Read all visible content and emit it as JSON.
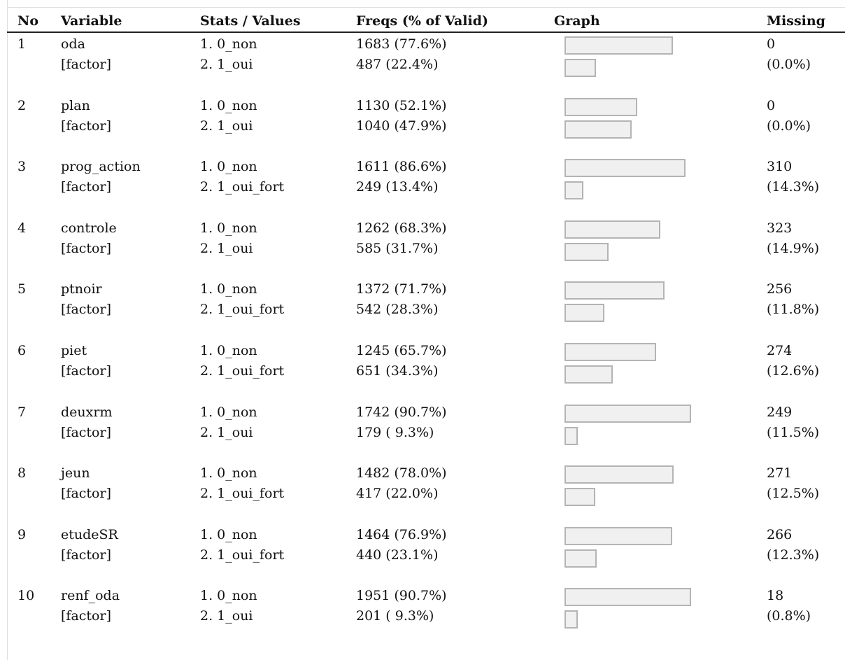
{
  "headers": {
    "no": "No",
    "variable": "Variable",
    "stats": "Stats / Values",
    "freqs": "Freqs (% of Valid)",
    "graph": "Graph",
    "missing": "Missing"
  },
  "rows": [
    {
      "no": "1",
      "name": "oda",
      "type": "[factor]",
      "values": [
        "1. 0_non",
        "2. 1_oui"
      ],
      "freqs": [
        "1683 (77.6%)",
        "487 (22.4%)"
      ],
      "pcts": [
        77.6,
        22.4
      ],
      "missing_count": "0",
      "missing_pct": "(0.0%)"
    },
    {
      "no": "2",
      "name": "plan",
      "type": "[factor]",
      "values": [
        "1. 0_non",
        "2. 1_oui"
      ],
      "freqs": [
        "1130 (52.1%)",
        "1040 (47.9%)"
      ],
      "pcts": [
        52.1,
        47.9
      ],
      "missing_count": "0",
      "missing_pct": "(0.0%)"
    },
    {
      "no": "3",
      "name": "prog_action",
      "type": "[factor]",
      "values": [
        "1. 0_non",
        "2. 1_oui_fort"
      ],
      "freqs": [
        "1611 (86.6%)",
        "249 (13.4%)"
      ],
      "pcts": [
        86.6,
        13.4
      ],
      "missing_count": "310",
      "missing_pct": "(14.3%)"
    },
    {
      "no": "4",
      "name": "controle",
      "type": "[factor]",
      "values": [
        "1. 0_non",
        "2. 1_oui"
      ],
      "freqs": [
        "1262 (68.3%)",
        "585 (31.7%)"
      ],
      "pcts": [
        68.3,
        31.7
      ],
      "missing_count": "323",
      "missing_pct": "(14.9%)"
    },
    {
      "no": "5",
      "name": "ptnoir",
      "type": "[factor]",
      "values": [
        "1. 0_non",
        "2. 1_oui_fort"
      ],
      "freqs": [
        "1372 (71.7%)",
        "542 (28.3%)"
      ],
      "pcts": [
        71.7,
        28.3
      ],
      "missing_count": "256",
      "missing_pct": "(11.8%)"
    },
    {
      "no": "6",
      "name": "piet",
      "type": "[factor]",
      "values": [
        "1. 0_non",
        "2. 1_oui_fort"
      ],
      "freqs": [
        "1245 (65.7%)",
        "651 (34.3%)"
      ],
      "pcts": [
        65.7,
        34.3
      ],
      "missing_count": "274",
      "missing_pct": "(12.6%)"
    },
    {
      "no": "7",
      "name": "deuxrm",
      "type": "[factor]",
      "values": [
        "1. 0_non",
        "2. 1_oui"
      ],
      "freqs": [
        "1742 (90.7%)",
        "179 ( 9.3%)"
      ],
      "pcts": [
        90.7,
        9.3
      ],
      "missing_count": "249",
      "missing_pct": "(11.5%)"
    },
    {
      "no": "8",
      "name": "jeun",
      "type": "[factor]",
      "values": [
        "1. 0_non",
        "2. 1_oui_fort"
      ],
      "freqs": [
        "1482 (78.0%)",
        "417 (22.0%)"
      ],
      "pcts": [
        78.0,
        22.0
      ],
      "missing_count": "271",
      "missing_pct": "(12.5%)"
    },
    {
      "no": "9",
      "name": "etudeSR",
      "type": "[factor]",
      "values": [
        "1. 0_non",
        "2. 1_oui_fort"
      ],
      "freqs": [
        "1464 (76.9%)",
        "440 (23.1%)"
      ],
      "pcts": [
        76.9,
        23.1
      ],
      "missing_count": "266",
      "missing_pct": "(12.3%)"
    },
    {
      "no": "10",
      "name": "renf_oda",
      "type": "[factor]",
      "values": [
        "1. 0_non",
        "2. 1_oui"
      ],
      "freqs": [
        "1951 (90.7%)",
        "201 ( 9.3%)"
      ],
      "pcts": [
        90.7,
        9.3
      ],
      "missing_count": "18",
      "missing_pct": "(0.8%)"
    }
  ]
}
